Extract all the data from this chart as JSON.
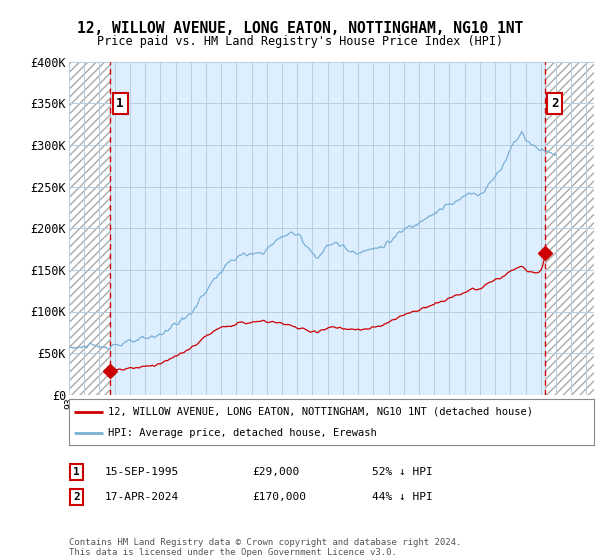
{
  "title": "12, WILLOW AVENUE, LONG EATON, NOTTINGHAM, NG10 1NT",
  "subtitle": "Price paid vs. HM Land Registry's House Price Index (HPI)",
  "ylim": [
    0,
    400000
  ],
  "yticks": [
    0,
    50000,
    100000,
    150000,
    200000,
    250000,
    300000,
    350000,
    400000
  ],
  "ytick_labels": [
    "£0",
    "£50K",
    "£100K",
    "£150K",
    "£200K",
    "£250K",
    "£300K",
    "£350K",
    "£400K"
  ],
  "xlim_start": 1993.0,
  "xlim_end": 2027.5,
  "sale1_year": 1995.71,
  "sale1_price": 29000,
  "sale2_year": 2024.29,
  "sale2_price": 170000,
  "sale1_label": "1",
  "sale2_label": "2",
  "sale1_date": "15-SEP-1995",
  "sale1_amount": "£29,000",
  "sale1_hpi": "52% ↓ HPI",
  "sale2_date": "17-APR-2024",
  "sale2_amount": "£170,000",
  "sale2_hpi": "44% ↓ HPI",
  "legend_line1": "12, WILLOW AVENUE, LONG EATON, NOTTINGHAM, NG10 1NT (detached house)",
  "legend_line2": "HPI: Average price, detached house, Erewash",
  "footer": "Contains HM Land Registry data © Crown copyright and database right 2024.\nThis data is licensed under the Open Government Licence v3.0.",
  "line_color_red": "#cc0000",
  "line_color_blue": "#7ab0d4",
  "chart_bg_color": "#ddeeff",
  "hatch_face_color": "#ffffff",
  "grid_color": "#b8cfe0",
  "bg_color": "#ffffff"
}
